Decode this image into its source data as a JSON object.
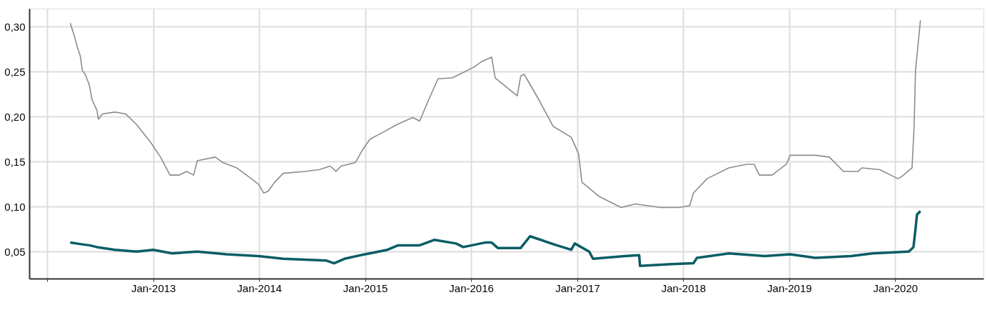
{
  "chart_data": {
    "type": "line",
    "xlim": [
      "2011-11-01",
      "2020-10-31"
    ],
    "ylim": [
      0.02,
      0.32
    ],
    "xticks": [
      {
        "value": "2012-01-01",
        "label": null
      },
      {
        "value": "2013-01-01",
        "label": "Jan-2013"
      },
      {
        "value": "2014-01-01",
        "label": "Jan-2014"
      },
      {
        "value": "2015-01-01",
        "label": "Jan-2015"
      },
      {
        "value": "2016-01-01",
        "label": "Jan-2016"
      },
      {
        "value": "2017-01-01",
        "label": "Jan-2017"
      },
      {
        "value": "2018-01-01",
        "label": "Jan-2018"
      },
      {
        "value": "2019-01-01",
        "label": "Jan-2019"
      },
      {
        "value": "2020-01-01",
        "label": "Jan-2020"
      }
    ],
    "yticks": [
      {
        "value": 0.05,
        "label": "0,05"
      },
      {
        "value": 0.1,
        "label": "0,10"
      },
      {
        "value": 0.15,
        "label": "0,15"
      },
      {
        "value": 0.2,
        "label": "0,20"
      },
      {
        "value": 0.25,
        "label": "0,25"
      },
      {
        "value": 0.3,
        "label": "0,30"
      }
    ],
    "grid": true,
    "legend": false,
    "marker": "none",
    "line_style": "solid",
    "series": [
      {
        "color": "#0b5d66",
        "x": [
          "2012-03-21",
          "2012-05-02",
          "2012-05-26",
          "2012-06-21",
          "2012-08-22",
          "2012-11-05",
          "2013-01-01",
          "2013-03-07",
          "2013-06-02",
          "2013-09-10",
          "2013-12-29",
          "2014-03-25",
          "2014-08-21",
          "2014-09-16",
          "2014-10-22",
          "2015-01-01",
          "2015-03-19",
          "2015-04-25",
          "2015-07-08",
          "2015-08-27",
          "2015-11-10",
          "2015-12-05",
          "2016-02-18",
          "2016-03-12",
          "2016-04-02",
          "2016-06-20",
          "2016-07-22",
          "2016-10-22",
          "2016-12-11",
          "2016-12-23",
          "2017-02-11",
          "2017-02-24",
          "2017-06-14",
          "2017-08-02",
          "2017-08-05",
          "2017-11-22",
          "2018-02-05",
          "2018-02-17",
          "2018-06-07",
          "2018-10-09",
          "2019-01-04",
          "2019-04-01",
          "2019-08-02",
          "2019-10-15",
          "2020-02-17",
          "2020-03-04",
          "2020-03-11",
          "2020-03-16",
          "2020-03-28"
        ],
        "values": [
          0.06,
          0.058,
          0.057,
          0.055,
          0.052,
          0.05,
          0.052,
          0.048,
          0.05,
          0.047,
          0.045,
          0.042,
          0.04,
          0.037,
          0.042,
          0.047,
          0.052,
          0.057,
          0.057,
          0.063,
          0.059,
          0.055,
          0.06,
          0.06,
          0.054,
          0.054,
          0.067,
          0.057,
          0.052,
          0.059,
          0.05,
          0.042,
          0.045,
          0.046,
          0.034,
          0.036,
          0.037,
          0.043,
          0.048,
          0.045,
          0.047,
          0.043,
          0.045,
          0.048,
          0.05,
          0.055,
          0.075,
          0.091,
          0.095
        ]
      },
      {
        "color": "#8c8c8c",
        "x": [
          "2012-03-21",
          "2012-04-03",
          "2012-04-13",
          "2012-04-25",
          "2012-05-02",
          "2012-05-12",
          "2012-05-26",
          "2012-06-04",
          "2012-06-21",
          "2012-06-26",
          "2012-07-10",
          "2012-08-22",
          "2012-09-28",
          "2012-11-05",
          "2012-12-24",
          "2013-01-26",
          "2013-02-28",
          "2013-04-01",
          "2013-04-26",
          "2013-05-20",
          "2013-06-02",
          "2013-08-03",
          "2013-08-28",
          "2013-10-16",
          "2013-12-05",
          "2013-12-29",
          "2014-01-17",
          "2014-02-01",
          "2014-02-23",
          "2014-03-25",
          "2014-06-08",
          "2014-07-27",
          "2014-09-03",
          "2014-09-23",
          "2014-10-10",
          "2014-11-29",
          "2014-12-23",
          "2015-01-18",
          "2015-03-06",
          "2015-04-20",
          "2015-06-14",
          "2015-07-08",
          "2015-08-03",
          "2015-09-09",
          "2015-10-28",
          "2015-12-05",
          "2016-01-11",
          "2016-02-06",
          "2016-03-12",
          "2016-03-24",
          "2016-05-01",
          "2016-06-08",
          "2016-06-20",
          "2016-07-02",
          "2016-08-21",
          "2016-10-10",
          "2016-12-11",
          "2017-01-05",
          "2017-01-17",
          "2017-03-18",
          "2017-06-01",
          "2017-07-20",
          "2017-10-15",
          "2017-12-16",
          "2018-01-23",
          "2018-02-05",
          "2018-03-24",
          "2018-06-07",
          "2018-08-08",
          "2018-09-02",
          "2018-09-20",
          "2018-11-03",
          "2018-12-22",
          "2019-01-04",
          "2019-04-01",
          "2019-05-19",
          "2019-07-07",
          "2019-08-26",
          "2019-09-08",
          "2019-11-09",
          "2020-01-10",
          "2020-01-22",
          "2020-02-28",
          "2020-03-06",
          "2020-03-11",
          "2020-03-28"
        ],
        "values": [
          0.304,
          0.291,
          0.279,
          0.267,
          0.251,
          0.247,
          0.235,
          0.219,
          0.207,
          0.197,
          0.203,
          0.205,
          0.203,
          0.191,
          0.171,
          0.155,
          0.135,
          0.135,
          0.139,
          0.135,
          0.151,
          0.155,
          0.149,
          0.143,
          0.131,
          0.125,
          0.115,
          0.117,
          0.127,
          0.137,
          0.139,
          0.141,
          0.145,
          0.139,
          0.145,
          0.149,
          0.163,
          0.175,
          0.183,
          0.191,
          0.199,
          0.195,
          0.215,
          0.242,
          0.243,
          0.249,
          0.255,
          0.261,
          0.266,
          0.243,
          0.233,
          0.223,
          0.245,
          0.247,
          0.219,
          0.189,
          0.177,
          0.159,
          0.127,
          0.111,
          0.099,
          0.103,
          0.099,
          0.099,
          0.101,
          0.115,
          0.131,
          0.143,
          0.147,
          0.147,
          0.135,
          0.135,
          0.147,
          0.157,
          0.157,
          0.155,
          0.139,
          0.139,
          0.143,
          0.141,
          0.131,
          0.133,
          0.143,
          0.187,
          0.251,
          0.307
        ]
      }
    ]
  }
}
